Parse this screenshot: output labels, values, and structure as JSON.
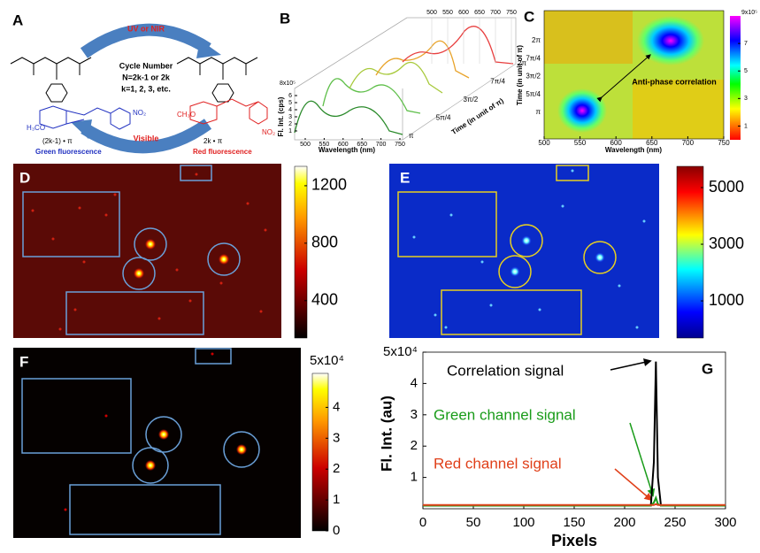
{
  "panels": {
    "A": {
      "label": "A",
      "arrow_top": "UV or NIR",
      "arrow_bottom": "Visible",
      "cycle_lines": [
        "Cycle Number",
        "N=2k-1 or 2k",
        "k=1, 2, 3, etc."
      ],
      "left_state": "(2k-1) • π",
      "right_state": "2k • π",
      "left_caption": "Green fluorescence",
      "right_caption": "Red fluorescence",
      "left_group": "H₃CO",
      "right_group": "CH₃O",
      "nitro": "NO₂"
    },
    "B": {
      "label": "B",
      "ylabel": "Fl. Int. (cps)",
      "xlabel": "Wavelength (nm)",
      "zlabel": "Time (in unit of π)",
      "y_top_label": "8x10⁵",
      "ylim": [
        0,
        8
      ],
      "yticks": [
        1,
        2,
        3,
        4,
        5,
        6
      ],
      "xlim": [
        500,
        750
      ],
      "xticks": [
        500,
        550,
        600,
        650,
        700,
        750
      ],
      "top_xticks": [
        500,
        550,
        600,
        650,
        700,
        750
      ],
      "zticks": [
        "π",
        "5π/4",
        "3π/2",
        "7π/4",
        "2π"
      ]
    },
    "C": {
      "label": "C",
      "xlabel": "Wavelength (nm)",
      "ylabel": "Time (in unit of π)",
      "annotation": "Anti-phase correlation",
      "xlim": [
        500,
        750
      ],
      "xticks": [
        500,
        550,
        600,
        650,
        700,
        750
      ],
      "yticks": [
        "π",
        "5π/4",
        "3π/2",
        "7π/4",
        "2π"
      ],
      "colorbar_top": "9x10⁵",
      "clim": [
        0,
        9
      ],
      "colorbar_ticks": [
        1,
        3,
        5,
        7
      ]
    },
    "D": {
      "label": "D",
      "clim": [
        140,
        1335
      ],
      "colorbar_ticks": [
        400,
        800,
        1200
      ]
    },
    "E": {
      "label": "E",
      "clim": [
        -310,
        5750
      ],
      "colorbar_ticks": [
        1000,
        3000,
        5000
      ]
    },
    "F": {
      "label": "F",
      "clim": [
        0,
        5.1
      ],
      "colorbar_ticks": [
        0,
        1,
        2,
        3,
        4
      ],
      "colorbar_top": "5x10⁴"
    }
  },
  "chart_data": {
    "type": "line",
    "label": "G",
    "xlabel": "Pixels",
    "ylabel": "Fl. Int. (au)",
    "x": [
      0,
      220,
      226,
      229,
      231,
      233,
      236,
      300
    ],
    "series": [
      {
        "color": "#000000",
        "values": [
          0.1,
          0.1,
          0.1,
          1.5,
          4.7,
          1.0,
          0.1,
          0.1
        ]
      },
      {
        "color": "#1a9c1a",
        "values": [
          0.1,
          0.1,
          0.1,
          0.2,
          0.35,
          0.15,
          0.1,
          0.1
        ]
      },
      {
        "color": "#e0401a",
        "values": [
          0.12,
          0.12,
          0.12,
          0.12,
          0.15,
          0.12,
          0.12,
          0.12
        ]
      }
    ],
    "annotations": [
      "Correlation signal",
      "Green channel signal",
      "Red channel signal"
    ],
    "xlim": [
      0,
      300
    ],
    "xticks": [
      0,
      50,
      100,
      150,
      200,
      250,
      300
    ],
    "ylim": [
      0,
      5
    ],
    "yticks": [
      1,
      2,
      3,
      4,
      {
        "value": 5,
        "label": "5x10⁴"
      }
    ]
  }
}
